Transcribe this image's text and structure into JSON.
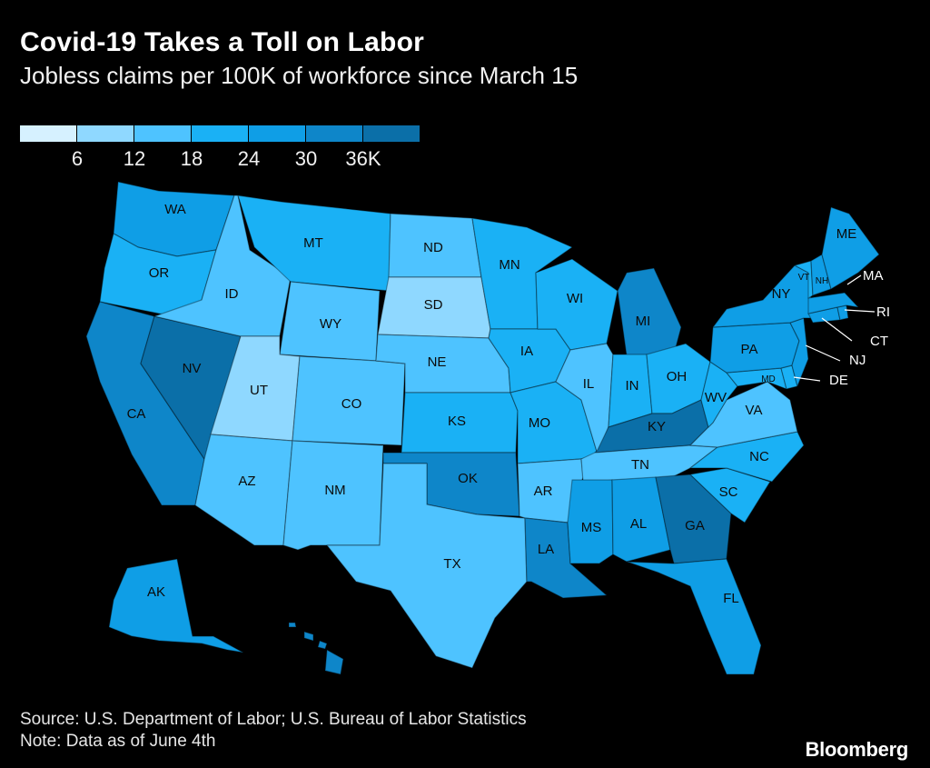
{
  "header": {
    "title": "Covid-19 Takes a Toll on Labor",
    "subtitle": "Jobless claims per 100K of workforce since March 15"
  },
  "legend": {
    "colors": [
      "#d6f1ff",
      "#8fd8ff",
      "#4ec3ff",
      "#1ab1f5",
      "#0f9ee6",
      "#0e86c9",
      "#0b6fa8"
    ],
    "ticks": [
      "6",
      "12",
      "18",
      "24",
      "30",
      "36K"
    ]
  },
  "map": {
    "states": {
      "WA": {
        "label": "WA",
        "level": 4
      },
      "OR": {
        "label": "OR",
        "level": 3
      },
      "CA": {
        "label": "CA",
        "level": 5
      },
      "NV": {
        "label": "NV",
        "level": 6
      },
      "ID": {
        "label": "ID",
        "level": 2
      },
      "MT": {
        "label": "MT",
        "level": 3
      },
      "WY": {
        "label": "WY",
        "level": 2
      },
      "UT": {
        "label": "UT",
        "level": 1
      },
      "AZ": {
        "label": "AZ",
        "level": 2
      },
      "CO": {
        "label": "CO",
        "level": 2
      },
      "NM": {
        "label": "NM",
        "level": 2
      },
      "ND": {
        "label": "ND",
        "level": 2
      },
      "SD": {
        "label": "SD",
        "level": 1
      },
      "NE": {
        "label": "NE",
        "level": 2
      },
      "KS": {
        "label": "KS",
        "level": 3
      },
      "OK": {
        "label": "OK",
        "level": 5
      },
      "TX": {
        "label": "TX",
        "level": 2
      },
      "MN": {
        "label": "MN",
        "level": 3
      },
      "IA": {
        "label": "IA",
        "level": 3
      },
      "MO": {
        "label": "MO",
        "level": 3
      },
      "AR": {
        "label": "AR",
        "level": 2
      },
      "LA": {
        "label": "LA",
        "level": 5
      },
      "WI": {
        "label": "WI",
        "level": 3
      },
      "IL": {
        "label": "IL",
        "level": 2
      },
      "MI": {
        "label": "MI",
        "level": 5
      },
      "IN": {
        "label": "IN",
        "level": 3
      },
      "OH": {
        "label": "OH",
        "level": 3
      },
      "KY": {
        "label": "KY",
        "level": 6
      },
      "TN": {
        "label": "TN",
        "level": 2
      },
      "MS": {
        "label": "MS",
        "level": 4
      },
      "AL": {
        "label": "AL",
        "level": 4
      },
      "GA": {
        "label": "GA",
        "level": 6
      },
      "FL": {
        "label": "FL",
        "level": 4
      },
      "SC": {
        "label": "SC",
        "level": 3
      },
      "NC": {
        "label": "NC",
        "level": 3
      },
      "VA": {
        "label": "VA",
        "level": 2
      },
      "WV": {
        "label": "WV",
        "level": 3
      },
      "PA": {
        "label": "PA",
        "level": 4
      },
      "NY": {
        "label": "NY",
        "level": 4
      },
      "ME": {
        "label": "ME",
        "level": 4
      },
      "VT": {
        "label": "VT",
        "level": 3
      },
      "NH": {
        "label": "NH",
        "level": 4
      },
      "MA": {
        "label": "MA",
        "level": 4
      },
      "RI": {
        "label": "RI",
        "level": 4
      },
      "CT": {
        "label": "CT",
        "level": 4
      },
      "NJ": {
        "label": "NJ",
        "level": 4
      },
      "DE": {
        "label": "DE",
        "level": 3
      },
      "MD": {
        "label": "MD",
        "level": 3
      },
      "AK": {
        "label": "AK",
        "level": 4
      },
      "HI": {
        "label": "",
        "level": 5
      }
    }
  },
  "footer": {
    "source": "Source: U.S. Department of Labor; U.S. Bureau of Labor Statistics",
    "note": "Note: Data as of June 4th",
    "brand": "Bloomberg"
  }
}
